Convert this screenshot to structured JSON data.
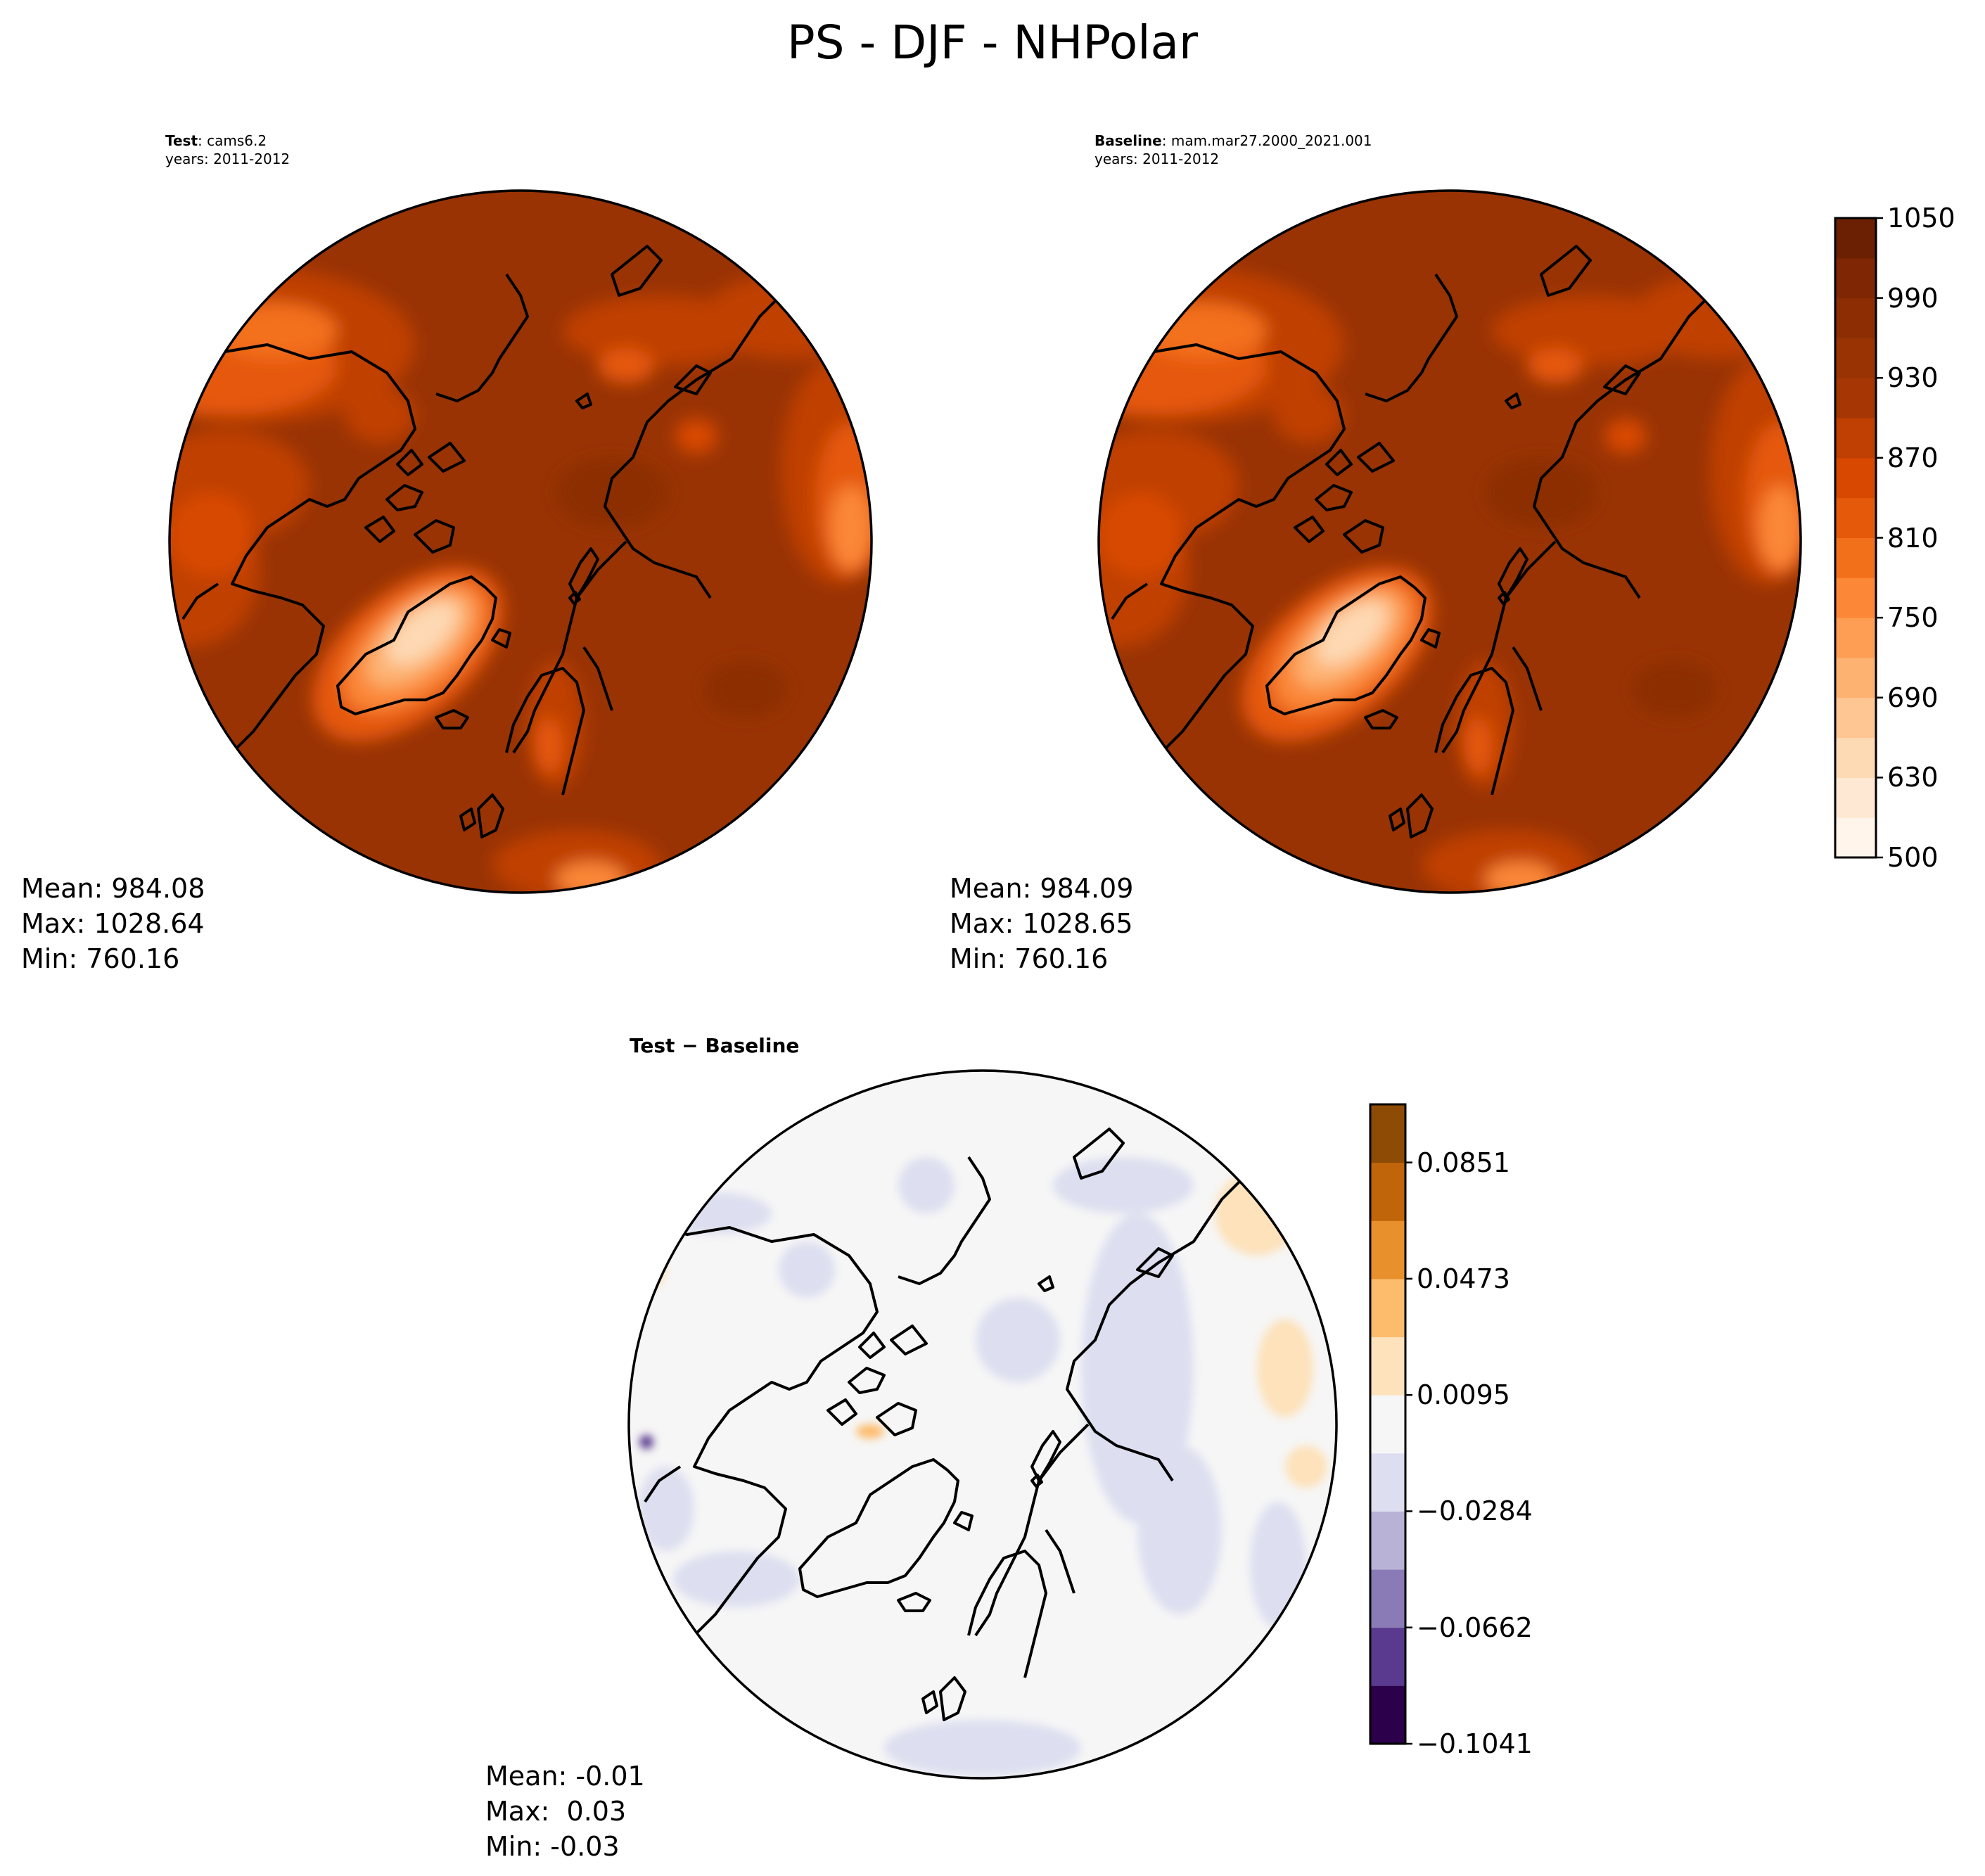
{
  "figure": {
    "title": "PS - DJF - NHPolar"
  },
  "panels": [
    {
      "id": "test",
      "label_bold": "Test",
      "label_rest": ": cams6.2",
      "years": "years: 2011-2012",
      "stats": {
        "mean": "Mean: 984.08",
        "max": "Max: 1028.64",
        "min": "Min: 760.16"
      }
    },
    {
      "id": "baseline",
      "label_bold": "Baseline",
      "label_rest": ": mam.mar27.2000_2021.001",
      "years": "years: 2011-2012",
      "stats": {
        "mean": "Mean: 984.09",
        "max": "Max: 1028.65",
        "min": "Min: 760.16"
      }
    },
    {
      "id": "diff",
      "label_bold": "Test − Baseline",
      "label_rest": "",
      "years": "",
      "stats": {
        "mean": "Mean: -0.01",
        "max": "Max:  0.03",
        "min": "Min: -0.03"
      }
    }
  ],
  "chart_data": [
    {
      "type": "heatmap",
      "projection": "north polar stereographic",
      "variable": "PS",
      "season": "DJF",
      "region": "NHPolar",
      "colormap": "Oranges",
      "colorbar": {
        "ticks": [
          "500",
          "630",
          "690",
          "750",
          "810",
          "870",
          "930",
          "990",
          "1050"
        ],
        "levels": [
          500,
          600,
          630,
          660,
          690,
          720,
          750,
          780,
          810,
          840,
          870,
          900,
          930,
          960,
          990,
          1020,
          1050
        ],
        "colors": [
          "#fff5eb",
          "#fee8d3",
          "#fdd9b4",
          "#fdc692",
          "#fdb272",
          "#fd9e54",
          "#fb8737",
          "#f3701b",
          "#e5590a",
          "#d84801",
          "#c03f02",
          "#a63603",
          "#993304",
          "#8c2d04",
          "#7f2704",
          "#6b2003"
        ]
      },
      "fields": [
        {
          "name": "Test",
          "mean": 984.08,
          "max": 1028.64,
          "min": 760.16
        },
        {
          "name": "Baseline",
          "mean": 984.09,
          "max": 1028.65,
          "min": 760.16
        }
      ]
    },
    {
      "type": "heatmap",
      "projection": "north polar stereographic",
      "name": "Test − Baseline",
      "colormap": "PuOr_r",
      "colorbar": {
        "ticks": [
          "0.0851",
          "0.0473",
          "0.0095",
          "−0.0284",
          "−0.0662",
          "−0.1041"
        ],
        "levels": [
          -0.1041,
          -0.0852,
          -0.0662,
          -0.0473,
          -0.0284,
          -0.0095,
          0.0095,
          0.0284,
          0.0473,
          0.0662,
          0.0851,
          0.1041
        ],
        "colors": [
          "#2d004b",
          "#5a3a8e",
          "#8a7bb6",
          "#b8b2d6",
          "#dddff0",
          "#f6f6f6",
          "#fde2bb",
          "#fdbb6c",
          "#e8902c",
          "#c0650a",
          "#8e4b06"
        ]
      },
      "mean": -0.01,
      "max": 0.03,
      "min": -0.03
    }
  ]
}
